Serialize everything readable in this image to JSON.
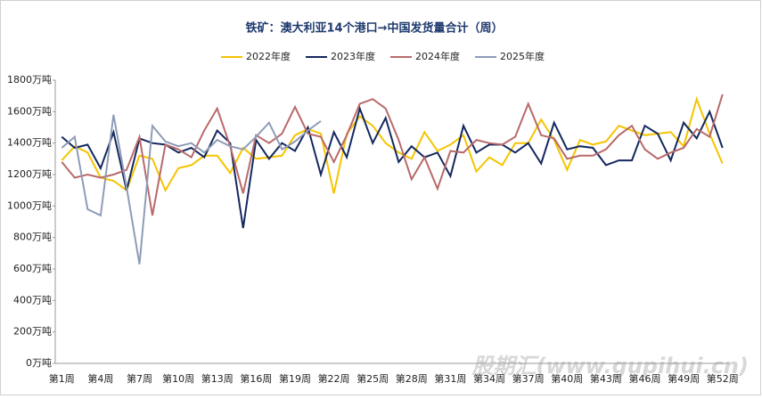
{
  "chart_data": {
    "type": "line",
    "title": "铁矿：澳大利亚14个港口→中国发货量合计（周）",
    "categories": [
      "第1周",
      null,
      null,
      "第4周",
      null,
      null,
      "第7周",
      null,
      null,
      "第10周",
      null,
      null,
      "第13周",
      null,
      null,
      "第16周",
      null,
      null,
      "第19周",
      null,
      null,
      "第22周",
      null,
      null,
      "第25周",
      null,
      null,
      "第28周",
      null,
      null,
      "第31周",
      null,
      null,
      "第34周",
      null,
      null,
      "第37周",
      null,
      null,
      "第40周",
      null,
      null,
      "第43周",
      null,
      null,
      "第46周",
      null,
      null,
      "第49周",
      null,
      null,
      "第52周"
    ],
    "series": [
      {
        "name": "2022年度",
        "color": "#f5c400",
        "values": [
          1290,
          1380,
          1340,
          1180,
          1160,
          1100,
          1320,
          1300,
          1100,
          1240,
          1260,
          1320,
          1320,
          1210,
          1370,
          1300,
          1310,
          1320,
          1450,
          1490,
          1460,
          1080,
          1460,
          1570,
          1510,
          1400,
          1340,
          1300,
          1470,
          1350,
          1390,
          1450,
          1220,
          1310,
          1260,
          1400,
          1400,
          1550,
          1420,
          1230,
          1420,
          1390,
          1410,
          1510,
          1480,
          1450,
          1460,
          1470,
          1380,
          1680,
          1460,
          1270
        ]
      },
      {
        "name": "2023年度",
        "color": "#14285e",
        "values": [
          1440,
          1370,
          1390,
          1240,
          1470,
          1100,
          1430,
          1400,
          1390,
          1340,
          1370,
          1310,
          1480,
          1400,
          860,
          1420,
          1300,
          1400,
          1350,
          1500,
          1200,
          1470,
          1310,
          1620,
          1400,
          1560,
          1280,
          1380,
          1310,
          1340,
          1190,
          1510,
          1340,
          1390,
          1390,
          1340,
          1400,
          1270,
          1530,
          1360,
          1380,
          1370,
          1260,
          1290,
          1290,
          1510,
          1460,
          1290,
          1530,
          1430,
          1600,
          1370
        ]
      },
      {
        "name": "2024年度",
        "color": "#b86a6a",
        "values": [
          1280,
          1180,
          1200,
          1180,
          1200,
          1230,
          1440,
          940,
          1390,
          1360,
          1310,
          1480,
          1620,
          1380,
          1080,
          1450,
          1400,
          1460,
          1630,
          1460,
          1440,
          1280,
          1450,
          1650,
          1680,
          1620,
          1420,
          1170,
          1310,
          1110,
          1350,
          1340,
          1420,
          1400,
          1390,
          1440,
          1650,
          1450,
          1430,
          1300,
          1320,
          1320,
          1360,
          1450,
          1510,
          1360,
          1300,
          1340,
          1370,
          1490,
          1440,
          1710
        ]
      },
      {
        "name": "2025年度",
        "color": "#8e9cb8",
        "values": [
          1370,
          1440,
          980,
          940,
          1580,
          1120,
          630,
          1510,
          1410,
          1380,
          1400,
          1340,
          1420,
          1380,
          1360,
          1440,
          1530,
          1360,
          1410,
          1480,
          1540,
          null,
          null,
          null,
          null,
          null,
          null,
          null,
          null,
          null,
          null,
          null,
          null,
          null,
          null,
          null,
          null,
          null,
          null,
          null,
          null,
          null,
          null,
          null,
          null,
          null,
          null,
          null,
          null,
          null,
          null,
          null
        ]
      }
    ],
    "ylim": [
      0,
      1800
    ],
    "yticks": [
      {
        "value": 0,
        "label": "0万吨"
      },
      {
        "value": 200,
        "label": "200万吨"
      },
      {
        "value": 400,
        "label": "400万吨"
      },
      {
        "value": 600,
        "label": "600万吨"
      },
      {
        "value": 800,
        "label": "800万吨"
      },
      {
        "value": 1000,
        "label": "1000万吨"
      },
      {
        "value": 1200,
        "label": "1200万吨"
      },
      {
        "value": 1400,
        "label": "1400万吨"
      },
      {
        "value": 1600,
        "label": "1600万吨"
      },
      {
        "value": 1800,
        "label": "1800万吨"
      }
    ],
    "legend": "top",
    "watermark": "股期汇(www.gupihui.cn)"
  }
}
